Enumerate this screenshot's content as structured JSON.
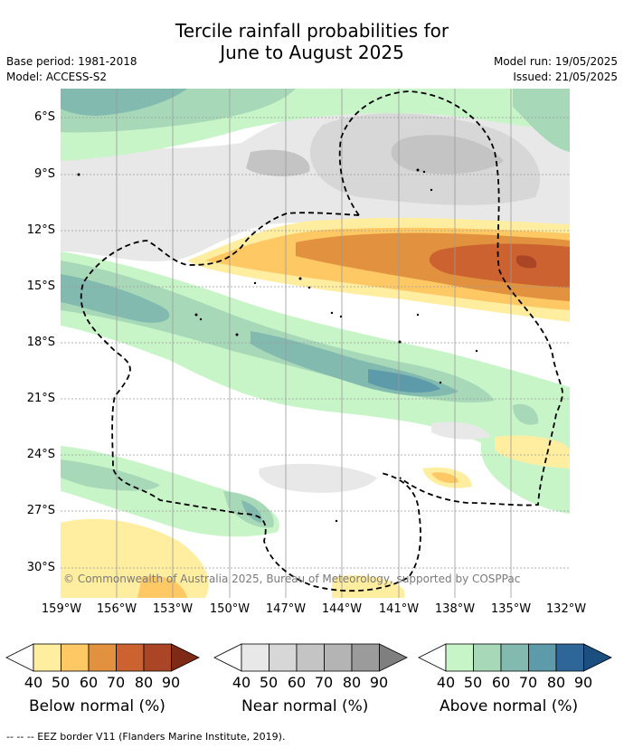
{
  "header": {
    "title_line1": "Tercile rainfall probabilities for",
    "title_line2": "June to August 2025",
    "base_period": "Base period: 1981-2018",
    "model": "Model: ACCESS-S2",
    "model_run": "Model run: 19/05/2025",
    "issued": "Issued: 21/05/2025"
  },
  "map": {
    "latitude_labels": [
      "6°S",
      "9°S",
      "12°S",
      "15°S",
      "18°S",
      "21°S",
      "24°S",
      "27°S",
      "30°S"
    ],
    "longitude_labels": [
      "159°W",
      "156°W",
      "153°W",
      "150°W",
      "147°W",
      "144°W",
      "141°W",
      "138°W",
      "135°W",
      "132°W"
    ],
    "copyright": "© Commonwealth of Australia 2025, Bureau of Meteorology, supported by COSPPac",
    "colors": {
      "below": [
        "#ffeda0",
        "#fec965",
        "#e2923f",
        "#cc6230",
        "#aa4526",
        "#7f2a17"
      ],
      "near": [
        "#e8e8e8",
        "#d7d7d7",
        "#c4c4c4",
        "#b4b4b4",
        "#9b9b9b",
        "#7f7f7f"
      ],
      "above": [
        "#c7f5c7",
        "#a7d9b9",
        "#82bab0",
        "#5d9aaa",
        "#2f6699",
        "#1b4f80"
      ]
    }
  },
  "legend": {
    "ticks": [
      "40",
      "50",
      "60",
      "70",
      "80",
      "90"
    ],
    "below_title": "Below normal (%)",
    "near_title": "Near normal (%)",
    "above_title": "Above normal (%)"
  },
  "footer": {
    "eez_note": "-- -- -- EEZ border V11 (Flanders Marine Institute, 2019)."
  }
}
